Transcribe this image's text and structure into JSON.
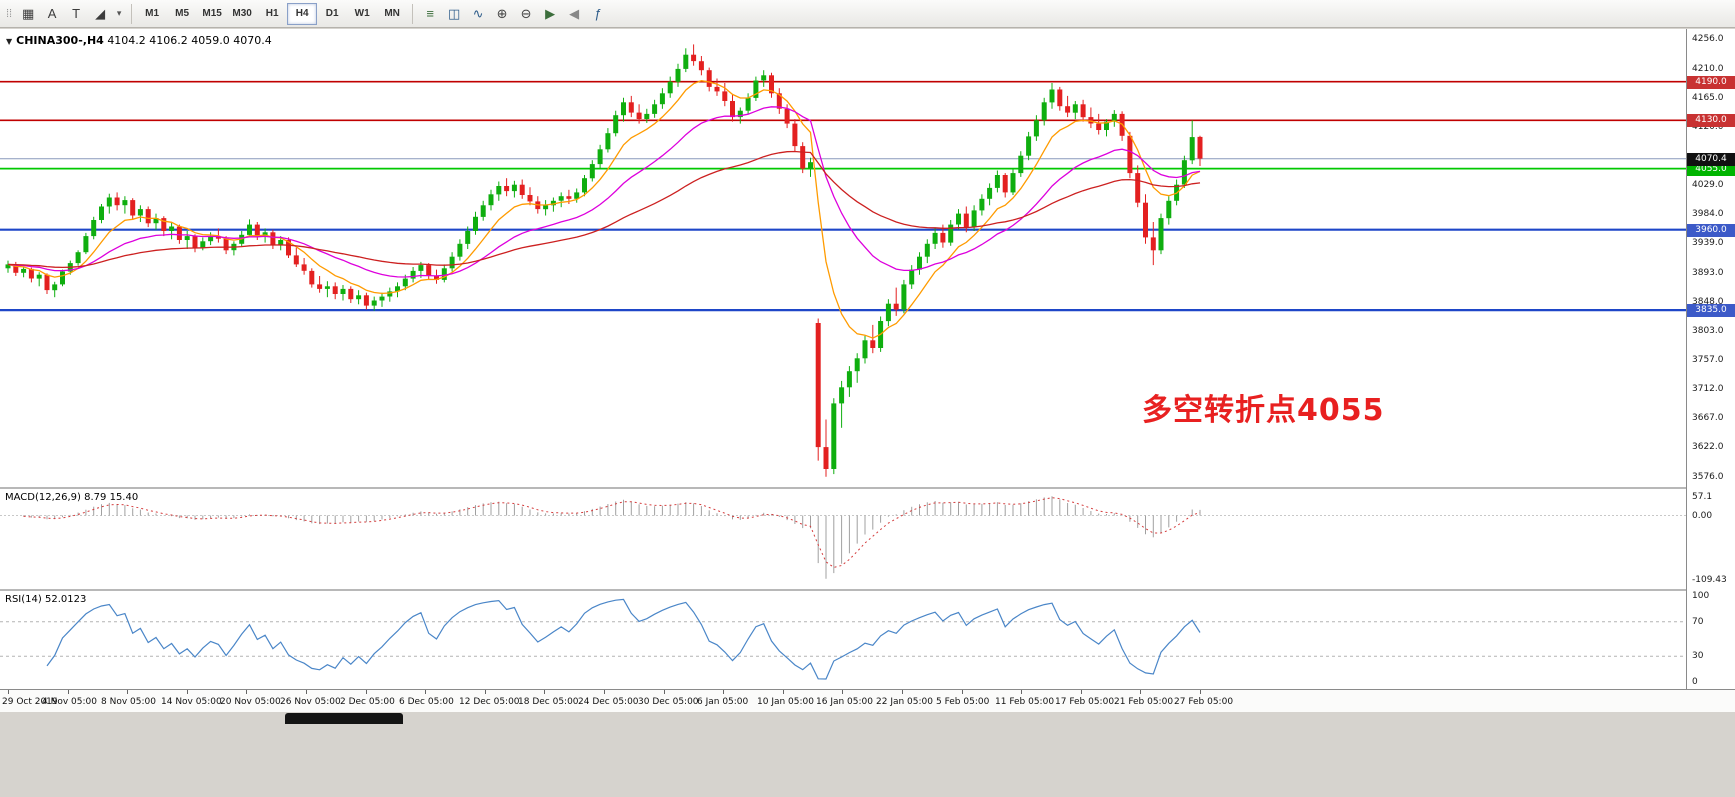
{
  "toolbar": {
    "left_tools": [
      {
        "name": "cursor-grid-icon",
        "glyph": "▦"
      },
      {
        "name": "text-label-icon",
        "glyph": "A"
      },
      {
        "name": "text-box-icon",
        "glyph": "T"
      },
      {
        "name": "shapes-icon",
        "glyph": "◢"
      },
      {
        "name": "shapes-dropdown-icon",
        "glyph": "▾"
      }
    ],
    "timeframes": [
      {
        "label": "M1",
        "active": false
      },
      {
        "label": "M5",
        "active": false
      },
      {
        "label": "M15",
        "active": false
      },
      {
        "label": "M30",
        "active": false
      },
      {
        "label": "H1",
        "active": false
      },
      {
        "label": "H4",
        "active": true
      },
      {
        "label": "D1",
        "active": false
      },
      {
        "label": "W1",
        "active": false
      },
      {
        "label": "MN",
        "active": false
      }
    ],
    "right_tools": [
      {
        "name": "bar-chart-icon",
        "glyph": "≡",
        "color": "#3c6e3c"
      },
      {
        "name": "candlestick-chart-icon",
        "glyph": "◫",
        "color": "#2e5c8a"
      },
      {
        "name": "line-chart-icon",
        "glyph": "∿",
        "color": "#2e5c8a"
      },
      {
        "name": "zoom-in-icon",
        "glyph": "⊕",
        "color": "#444444"
      },
      {
        "name": "zoom-out-icon",
        "glyph": "⊖",
        "color": "#444444"
      },
      {
        "name": "auto-scroll-icon",
        "glyph": "▶",
        "color": "#3c6e3c"
      },
      {
        "name": "chart-shift-icon",
        "glyph": "◀",
        "color": "#888888"
      },
      {
        "name": "indicators-icon",
        "glyph": "ƒ",
        "color": "#2e5c8a"
      }
    ]
  },
  "chart_header": {
    "collapse_glyph": "▼",
    "symbol_period": "CHINA300-,H4",
    "ohlc_text": "4104.2 4106.2 4059.0 4070.4"
  },
  "annotation": {
    "text": "多空转折点4055",
    "color": "#e82020"
  },
  "price_scale": {
    "range": [
      3560,
      4272
    ],
    "ticks": [
      "4256.0",
      "4210.0",
      "4165.0",
      "4120.0",
      "4029.0",
      "3984.0",
      "3939.0",
      "3893.0",
      "3848.0",
      "3803.0",
      "3757.0",
      "3712.0",
      "3667.0",
      "3622.0",
      "3576.0"
    ]
  },
  "time_scale": {
    "ticks": [
      "29 Oct 2019",
      "4 Nov 05:00",
      "8 Nov 05:00",
      "14 Nov 05:00",
      "20 Nov 05:00",
      "26 Nov 05:00",
      "2 Dec 05:00",
      "6 Dec 05:00",
      "12 Dec 05:00",
      "18 Dec 05:00",
      "24 Dec 05:00",
      "30 Dec 05:00",
      "6 Jan 05:00",
      "10 Jan 05:00",
      "16 Jan 05:00",
      "22 Jan 05:00",
      "5 Feb 05:00",
      "11 Feb 05:00",
      "17 Feb 05:00",
      "21 Feb 05:00",
      "27 Feb 05:00"
    ]
  },
  "hlines": [
    {
      "price": 4190.0,
      "label": "4190.0",
      "line": "#c00000",
      "badge": "#c83232",
      "width": 1.6
    },
    {
      "price": 4130.0,
      "label": "4130.0",
      "line": "#c00000",
      "badge": "#c83232",
      "width": 1.6
    },
    {
      "price": 4055.0,
      "label": "4055.0",
      "line": "#00c800",
      "badge": "#00b400",
      "width": 1.8
    },
    {
      "price": 3960.0,
      "label": "3960.0",
      "line": "#1e46c8",
      "badge": "#3c5ac8",
      "width": 2.2
    },
    {
      "price": 3835.0,
      "label": "3835.0",
      "line": "#1e46c8",
      "badge": "#3c5ac8",
      "width": 2.2
    }
  ],
  "current_price": {
    "value": "4070.4",
    "line": "#8899bb",
    "badge": "#111111"
  },
  "chart_data": {
    "type": "candlestick",
    "symbol": "CHINA300-",
    "timeframe": "H4",
    "up_color": "#0fae0f",
    "down_color": "#e32020",
    "overlays": [
      {
        "name": "ma-fast",
        "color": "#ff9b00"
      },
      {
        "name": "ma-medium",
        "color": "#dd00dd"
      },
      {
        "name": "ma-slow",
        "color": "#cc2020"
      }
    ],
    "series_ohlc": [
      [
        3900,
        3912,
        3893,
        3906
      ],
      [
        3906,
        3910,
        3888,
        3893
      ],
      [
        3893,
        3903,
        3886,
        3899
      ],
      [
        3899,
        3901,
        3878,
        3884
      ],
      [
        3884,
        3894,
        3872,
        3890
      ],
      [
        3890,
        3892,
        3860,
        3866
      ],
      [
        3866,
        3879,
        3855,
        3875
      ],
      [
        3875,
        3898,
        3872,
        3895
      ],
      [
        3895,
        3912,
        3890,
        3908
      ],
      [
        3908,
        3928,
        3904,
        3925
      ],
      [
        3925,
        3955,
        3922,
        3950
      ],
      [
        3950,
        3980,
        3945,
        3975
      ],
      [
        3975,
        4000,
        3970,
        3996
      ],
      [
        3996,
        4016,
        3985,
        4010
      ],
      [
        4010,
        4018,
        3990,
        3998
      ],
      [
        3998,
        4012,
        3985,
        4006
      ],
      [
        4006,
        4009,
        3975,
        3982
      ],
      [
        3982,
        3998,
        3972,
        3992
      ],
      [
        3992,
        3996,
        3964,
        3970
      ],
      [
        3970,
        3985,
        3960,
        3978
      ],
      [
        3978,
        3981,
        3950,
        3958
      ],
      [
        3958,
        3972,
        3945,
        3965
      ],
      [
        3965,
        3968,
        3938,
        3944
      ],
      [
        3944,
        3958,
        3930,
        3950
      ],
      [
        3950,
        3953,
        3925,
        3932
      ],
      [
        3932,
        3948,
        3928,
        3942
      ],
      [
        3942,
        3956,
        3936,
        3950
      ],
      [
        3950,
        3962,
        3940,
        3946
      ],
      [
        3946,
        3950,
        3922,
        3928
      ],
      [
        3928,
        3942,
        3920,
        3938
      ],
      [
        3938,
        3958,
        3934,
        3952
      ],
      [
        3952,
        3976,
        3948,
        3968
      ],
      [
        3968,
        3972,
        3944,
        3950
      ],
      [
        3950,
        3962,
        3940,
        3956
      ],
      [
        3956,
        3960,
        3930,
        3936
      ],
      [
        3936,
        3950,
        3928,
        3944
      ],
      [
        3944,
        3948,
        3916,
        3920
      ],
      [
        3920,
        3932,
        3902,
        3906
      ],
      [
        3906,
        3916,
        3890,
        3896
      ],
      [
        3896,
        3900,
        3870,
        3875
      ],
      [
        3875,
        3888,
        3862,
        3868
      ],
      [
        3868,
        3880,
        3855,
        3872
      ],
      [
        3872,
        3878,
        3852,
        3860
      ],
      [
        3860,
        3874,
        3850,
        3868
      ],
      [
        3868,
        3872,
        3846,
        3852
      ],
      [
        3852,
        3866,
        3844,
        3858
      ],
      [
        3858,
        3862,
        3836,
        3842
      ],
      [
        3842,
        3856,
        3834,
        3850
      ],
      [
        3850,
        3862,
        3840,
        3856
      ],
      [
        3856,
        3870,
        3848,
        3864
      ],
      [
        3864,
        3878,
        3855,
        3872
      ],
      [
        3872,
        3890,
        3866,
        3884
      ],
      [
        3884,
        3902,
        3878,
        3896
      ],
      [
        3896,
        3910,
        3885,
        3905
      ],
      [
        3905,
        3908,
        3882,
        3888
      ],
      [
        3888,
        3898,
        3876,
        3882
      ],
      [
        3882,
        3906,
        3878,
        3900
      ],
      [
        3900,
        3925,
        3895,
        3918
      ],
      [
        3918,
        3945,
        3912,
        3938
      ],
      [
        3938,
        3965,
        3930,
        3958
      ],
      [
        3958,
        3988,
        3952,
        3980
      ],
      [
        3980,
        4005,
        3974,
        3998
      ],
      [
        3998,
        4022,
        3990,
        4015
      ],
      [
        4015,
        4035,
        4005,
        4028
      ],
      [
        4028,
        4040,
        4012,
        4020
      ],
      [
        4020,
        4036,
        4010,
        4030
      ],
      [
        4030,
        4038,
        4008,
        4014
      ],
      [
        4014,
        4026,
        3998,
        4004
      ],
      [
        4004,
        4012,
        3985,
        3992
      ],
      [
        3992,
        4006,
        3982,
        3998
      ],
      [
        3998,
        4010,
        3988,
        4005
      ],
      [
        4005,
        4018,
        3995,
        4012
      ],
      [
        4012,
        4022,
        4000,
        4008
      ],
      [
        4008,
        4024,
        4002,
        4018
      ],
      [
        4018,
        4045,
        4012,
        4040
      ],
      [
        4040,
        4068,
        4035,
        4062
      ],
      [
        4062,
        4092,
        4055,
        4085
      ],
      [
        4085,
        4118,
        4080,
        4110
      ],
      [
        4110,
        4145,
        4105,
        4138
      ],
      [
        4138,
        4165,
        4128,
        4158
      ],
      [
        4158,
        4168,
        4135,
        4142
      ],
      [
        4142,
        4155,
        4125,
        4132
      ],
      [
        4132,
        4148,
        4126,
        4140
      ],
      [
        4140,
        4162,
        4134,
        4155
      ],
      [
        4155,
        4180,
        4148,
        4172
      ],
      [
        4172,
        4198,
        4165,
        4190
      ],
      [
        4190,
        4218,
        4182,
        4210
      ],
      [
        4210,
        4242,
        4205,
        4232
      ],
      [
        4232,
        4248,
        4215,
        4222
      ],
      [
        4222,
        4230,
        4200,
        4208
      ],
      [
        4208,
        4212,
        4175,
        4182
      ],
      [
        4182,
        4195,
        4168,
        4175
      ],
      [
        4175,
        4188,
        4152,
        4160
      ],
      [
        4160,
        4170,
        4128,
        4135
      ],
      [
        4135,
        4150,
        4125,
        4145
      ],
      [
        4145,
        4172,
        4140,
        4165
      ],
      [
        4165,
        4198,
        4160,
        4192
      ],
      [
        4192,
        4208,
        4182,
        4200
      ],
      [
        4200,
        4204,
        4165,
        4172
      ],
      [
        4172,
        4180,
        4140,
        4148
      ],
      [
        4148,
        4155,
        4118,
        4125
      ],
      [
        4125,
        4132,
        4082,
        4090
      ],
      [
        4090,
        4096,
        4048,
        4055
      ],
      [
        4055,
        4072,
        4042,
        4065
      ],
      [
        3815,
        3822,
        3601,
        3622
      ],
      [
        3622,
        3665,
        3576,
        3588
      ],
      [
        3588,
        3698,
        3580,
        3690
      ],
      [
        3690,
        3725,
        3652,
        3715
      ],
      [
        3715,
        3748,
        3700,
        3740
      ],
      [
        3740,
        3768,
        3722,
        3760
      ],
      [
        3760,
        3795,
        3752,
        3788
      ],
      [
        3788,
        3812,
        3768,
        3776
      ],
      [
        3776,
        3825,
        3770,
        3818
      ],
      [
        3818,
        3852,
        3810,
        3845
      ],
      [
        3845,
        3870,
        3826,
        3836
      ],
      [
        3836,
        3882,
        3830,
        3875
      ],
      [
        3875,
        3905,
        3868,
        3898
      ],
      [
        3898,
        3925,
        3890,
        3918
      ],
      [
        3918,
        3945,
        3908,
        3938
      ],
      [
        3938,
        3962,
        3930,
        3955
      ],
      [
        3955,
        3968,
        3932,
        3940
      ],
      [
        3940,
        3975,
        3935,
        3968
      ],
      [
        3968,
        3992,
        3960,
        3985
      ],
      [
        3985,
        3996,
        3956,
        3964
      ],
      [
        3964,
        3998,
        3958,
        3990
      ],
      [
        3990,
        4015,
        3982,
        4008
      ],
      [
        4008,
        4032,
        3998,
        4025
      ],
      [
        4025,
        4052,
        4018,
        4045
      ],
      [
        4045,
        4048,
        4010,
        4018
      ],
      [
        4018,
        4055,
        4014,
        4048
      ],
      [
        4048,
        4082,
        4042,
        4075
      ],
      [
        4075,
        4112,
        4068,
        4105
      ],
      [
        4105,
        4138,
        4098,
        4130
      ],
      [
        4130,
        4165,
        4122,
        4158
      ],
      [
        4158,
        4188,
        4148,
        4178
      ],
      [
        4178,
        4182,
        4145,
        4152
      ],
      [
        4152,
        4168,
        4135,
        4142
      ],
      [
        4142,
        4160,
        4132,
        4155
      ],
      [
        4155,
        4162,
        4128,
        4135
      ],
      [
        4135,
        4150,
        4118,
        4125
      ],
      [
        4125,
        4140,
        4108,
        4115
      ],
      [
        4115,
        4132,
        4105,
        4128
      ],
      [
        4128,
        4146,
        4120,
        4140
      ],
      [
        4140,
        4144,
        4098,
        4106
      ],
      [
        4106,
        4112,
        4040,
        4048
      ],
      [
        4048,
        4060,
        3995,
        4002
      ],
      [
        4002,
        4015,
        3938,
        3948
      ],
      [
        3948,
        3972,
        3905,
        3928
      ],
      [
        3928,
        3985,
        3922,
        3978
      ],
      [
        3978,
        4012,
        3968,
        4005
      ],
      [
        4005,
        4038,
        3998,
        4030
      ],
      [
        4030,
        4075,
        4025,
        4068
      ],
      [
        4068,
        4130,
        4062,
        4104
      ],
      [
        4104.2,
        4106.2,
        4059.0,
        4070.4
      ]
    ]
  },
  "macd": {
    "label": "MACD(12,26,9)",
    "values": "8.79 15.40",
    "axis_labels": [
      "57.1",
      "0.00",
      "-109.43"
    ],
    "histogram_color": "#a0a0a0",
    "signal_color": "#d43c3c"
  },
  "rsi": {
    "label": "RSI(14)",
    "value": "52.0123",
    "axis_labels": [
      "100",
      "70",
      "30",
      "0"
    ],
    "levels": [
      70,
      30
    ],
    "line_color": "#4a86c8"
  }
}
